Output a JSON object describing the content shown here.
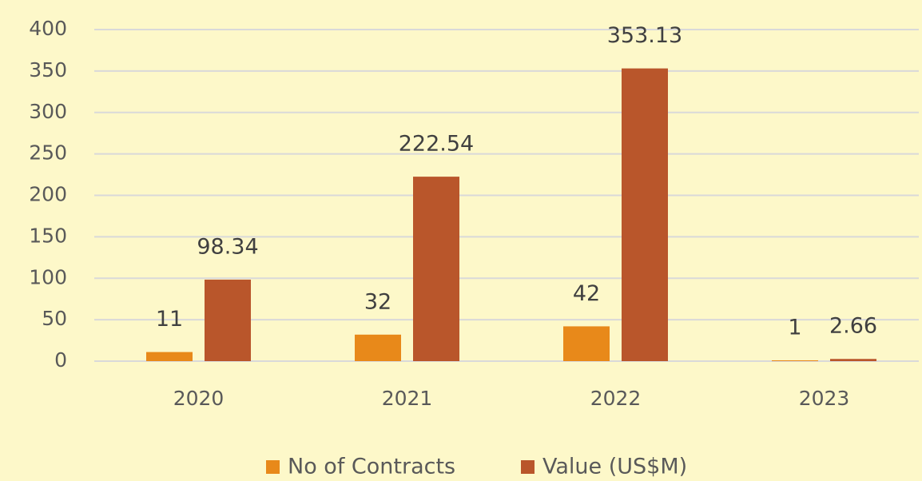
{
  "chart_data": {
    "type": "bar",
    "categories": [
      "2020",
      "2021",
      "2022",
      "2023"
    ],
    "series": [
      {
        "name": "No of Contracts",
        "color": "#e8891a",
        "values": [
          11,
          32,
          42,
          1
        ]
      },
      {
        "name": "Value (US$M)",
        "color": "#b9562b",
        "values": [
          98.34,
          222.54,
          353.13,
          2.66
        ]
      }
    ],
    "ylim": [
      0,
      400
    ],
    "yticks": [
      0,
      50,
      100,
      150,
      200,
      250,
      300,
      350,
      400
    ],
    "grid": true,
    "legend": "bottom"
  }
}
